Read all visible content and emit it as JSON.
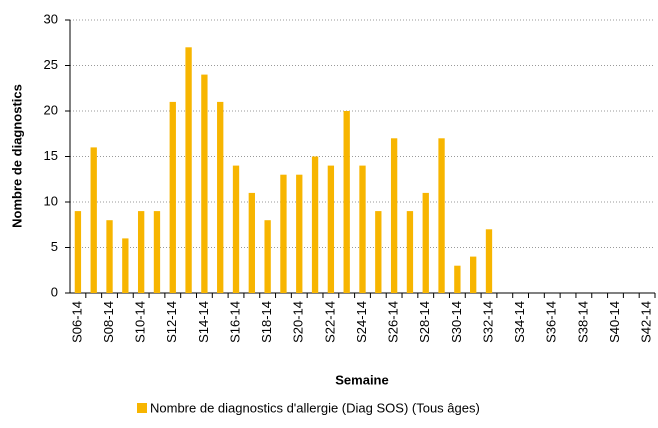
{
  "chart_data": {
    "type": "bar",
    "x_label": "Semaine",
    "y_label": "Nombre de diagnostics",
    "categories": [
      "S06-14",
      null,
      "S08-14",
      null,
      "S10-14",
      null,
      "S12-14",
      null,
      "S14-14",
      null,
      "S16-14",
      null,
      "S18-14",
      null,
      "S20-14",
      null,
      "S22-14",
      null,
      "S24-14",
      null,
      "S26-14",
      null,
      "S28-14",
      null,
      "S30-14",
      null,
      "S32-14",
      null,
      "S34-14",
      null,
      "S36-14",
      null,
      "S38-14",
      null,
      "S40-14",
      null,
      "S42-14"
    ],
    "series": [
      {
        "name": "Nombre de diagnostics d'allergie (Diag SOS) (Tous âges)",
        "color": "#f7b500",
        "values": [
          9,
          16,
          8,
          6,
          9,
          9,
          21,
          27,
          24,
          21,
          14,
          11,
          8,
          13,
          13,
          15,
          14,
          20,
          14,
          9,
          17,
          9,
          11,
          17,
          3,
          4,
          7,
          null,
          null,
          null,
          null,
          null,
          null,
          null,
          null,
          null,
          null
        ]
      }
    ],
    "ylim": [
      0,
      30
    ],
    "yticks": [
      0,
      5,
      10,
      15,
      20,
      25,
      30
    ],
    "grid": true,
    "legend": "bottom"
  }
}
